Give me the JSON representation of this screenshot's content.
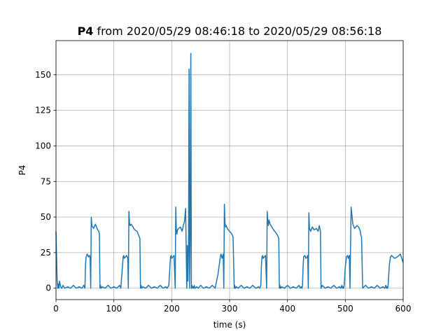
{
  "chart_data": {
    "type": "line",
    "title_bold": "P4",
    "title_rest": " from 2020/05/29 08:46:18 to 2020/05/29 08:56:18",
    "xlabel": "time (s)",
    "ylabel": "P4",
    "xlim": [
      0,
      600
    ],
    "ylim": [
      -8,
      174
    ],
    "xticks": [
      0,
      100,
      200,
      300,
      400,
      500,
      600
    ],
    "yticks": [
      0,
      25,
      50,
      75,
      100,
      125,
      150
    ],
    "grid": true,
    "line_color": "#1f77b4",
    "series": [
      {
        "x": [
          0,
          1,
          2,
          3,
          4,
          5,
          6,
          8,
          10,
          12,
          15,
          20,
          25,
          30,
          35,
          40,
          45,
          48,
          50,
          51,
          52,
          54,
          56,
          58,
          59,
          60,
          61,
          62,
          65,
          68,
          70,
          72,
          74,
          75,
          76,
          77,
          78,
          80,
          85,
          90,
          95,
          100,
          105,
          110,
          112,
          115,
          116,
          117,
          118,
          120,
          122,
          124,
          125,
          126,
          127,
          128,
          130,
          133,
          136,
          140,
          143,
          145,
          146,
          147,
          148,
          150,
          155,
          160,
          165,
          170,
          175,
          180,
          185,
          190,
          192,
          195,
          197,
          198,
          199,
          200,
          202,
          204,
          206,
          207,
          208,
          209,
          210,
          212,
          215,
          218,
          220,
          222,
          224,
          226,
          227,
          228,
          229,
          230,
          231,
          232,
          233,
          234,
          235,
          236,
          237,
          238,
          239,
          240,
          243,
          246,
          250,
          255,
          260,
          265,
          270,
          275,
          280,
          282,
          284,
          285,
          286,
          287,
          288,
          289,
          290,
          291,
          292,
          293,
          294,
          296,
          300,
          304,
          306,
          308,
          309,
          310,
          312,
          315,
          320,
          325,
          330,
          335,
          340,
          345,
          350,
          352,
          354,
          355,
          356,
          357,
          358,
          360,
          362,
          364,
          365,
          366,
          367,
          368,
          370,
          373,
          376,
          380,
          383,
          385,
          386,
          387,
          388,
          390,
          395,
          400,
          405,
          410,
          415,
          420,
          422,
          424,
          425,
          426,
          427,
          428,
          430,
          432,
          434,
          435,
          436,
          437,
          438,
          440,
          443,
          446,
          450,
          453,
          455,
          456,
          457,
          458,
          460,
          465,
          470,
          475,
          480,
          485,
          490,
          492,
          494,
          495,
          496,
          497,
          498,
          500,
          502,
          504,
          505,
          506,
          507,
          508,
          510,
          513,
          516,
          520,
          523,
          525,
          526,
          527,
          528,
          530,
          535,
          540,
          545,
          550,
          555,
          560,
          565,
          568,
          570,
          571,
          572,
          573,
          574,
          576,
          578,
          580,
          585,
          590,
          595,
          600
        ],
        "y": [
          40,
          22,
          5,
          0,
          3,
          0,
          5,
          1,
          0,
          2,
          0,
          1,
          0,
          2,
          0,
          1,
          0,
          2,
          0,
          16,
          22,
          24,
          22,
          23,
          21,
          0,
          50,
          44,
          42,
          45,
          43,
          41,
          40,
          38,
          0,
          2,
          0,
          1,
          0,
          2,
          0,
          1,
          0,
          2,
          0,
          16,
          22,
          23,
          21,
          22,
          23,
          21,
          0,
          54,
          46,
          44,
          45,
          43,
          41,
          40,
          37,
          35,
          0,
          2,
          0,
          1,
          0,
          2,
          0,
          1,
          0,
          2,
          0,
          1,
          0,
          2,
          16,
          22,
          23,
          21,
          22,
          23,
          0,
          57,
          40,
          38,
          41,
          42,
          43,
          40,
          44,
          47,
          56,
          0,
          30,
          5,
          28,
          154,
          0,
          40,
          165,
          0,
          2,
          0,
          1,
          0,
          2,
          0,
          1,
          0,
          2,
          0,
          1,
          0,
          2,
          0,
          10,
          16,
          22,
          24,
          23,
          21,
          22,
          24,
          0,
          59,
          46,
          43,
          44,
          42,
          40,
          38,
          36,
          0,
          2,
          0,
          1,
          0,
          2,
          0,
          1,
          0,
          2,
          0,
          1,
          0,
          2,
          16,
          22,
          23,
          21,
          22,
          23,
          0,
          54,
          47,
          44,
          48,
          45,
          43,
          41,
          39,
          37,
          35,
          0,
          2,
          0,
          1,
          0,
          2,
          0,
          1,
          0,
          2,
          0,
          1,
          0,
          2,
          15,
          22,
          23,
          21,
          22,
          23,
          0,
          53,
          42,
          40,
          43,
          41,
          42,
          40,
          44,
          42,
          40,
          0,
          2,
          0,
          1,
          0,
          2,
          0,
          1,
          0,
          2,
          0,
          1,
          0,
          2,
          15,
          22,
          23,
          21,
          22,
          23,
          0,
          57,
          45,
          42,
          44,
          43,
          41,
          40,
          37,
          36,
          0,
          2,
          0,
          1,
          0,
          2,
          0,
          1,
          0,
          2,
          0,
          1,
          0,
          2,
          16,
          22,
          23,
          21,
          22,
          24,
          18
        ]
      }
    ]
  }
}
